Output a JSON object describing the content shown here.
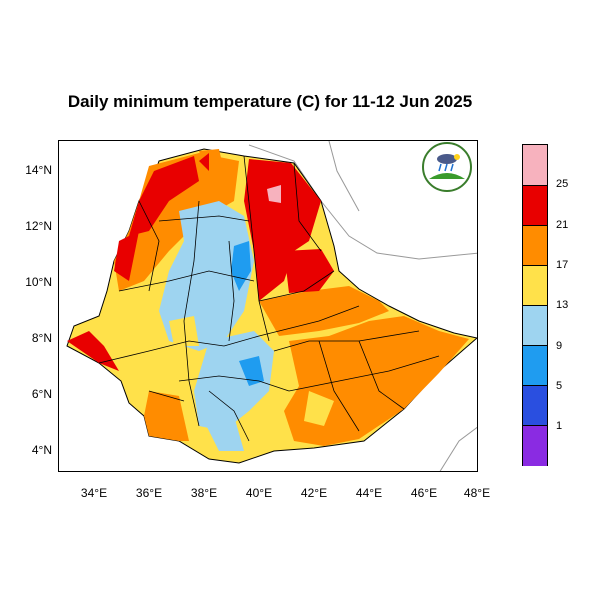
{
  "title": "Daily minimum temperature (C) for 11-12 Jun 2025",
  "y_ticks": [
    "14°N",
    "12°N",
    "10°N",
    "8°N",
    "6°N",
    "4°N"
  ],
  "x_ticks": [
    "34°E",
    "36°E",
    "38°E",
    "40°E",
    "42°E",
    "44°E",
    "46°E",
    "48°E"
  ],
  "colorbar": {
    "labels": [
      "25",
      "21",
      "17",
      "13",
      "9",
      "5",
      "1"
    ],
    "colors": [
      "#f7b2be",
      "#e80000",
      "#ff8c00",
      "#ffe14a",
      "#9ed4f0",
      "#1f9cf0",
      "#2a4fe0",
      "#8a2be2"
    ]
  },
  "logo": {
    "name": "Ethiopian Meteorology Institute logo"
  }
}
